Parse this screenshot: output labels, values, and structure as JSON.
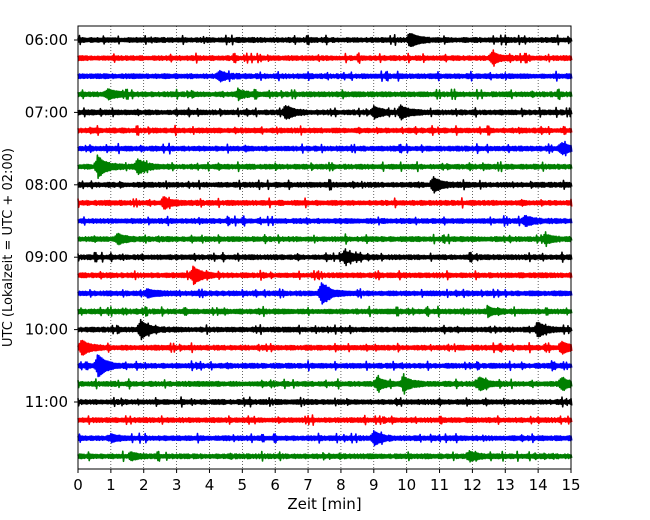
{
  "chart_data": {
    "type": "line",
    "subtype": "helicorder",
    "xlabel": "Zeit  [min]",
    "ylabel": "UTC (Lokalzeit = UTC + 02:00)",
    "xlim": [
      0,
      15
    ],
    "x_ticks": [
      "0",
      "1",
      "2",
      "3",
      "4",
      "5",
      "6",
      "7",
      "8",
      "9",
      "10",
      "11",
      "12",
      "13",
      "14",
      "15"
    ],
    "y_tick_labels": [
      "06:00",
      "07:00",
      "08:00",
      "09:00",
      "10:00",
      "11:00"
    ],
    "grid": "vertical dotted",
    "colors": [
      "#000000",
      "#ff0000",
      "#0000ff",
      "#008000"
    ],
    "traces": [
      {
        "start": "06:00",
        "color": "#000000",
        "events": [
          {
            "t": 10.1,
            "amp": 0.6
          }
        ]
      },
      {
        "start": "06:15",
        "color": "#ff0000",
        "events": [
          {
            "t": 12.6,
            "amp": 0.5
          }
        ]
      },
      {
        "start": "06:30",
        "color": "#0000ff",
        "events": [
          {
            "t": 4.3,
            "amp": 0.4
          }
        ]
      },
      {
        "start": "06:45",
        "color": "#008000",
        "events": [
          {
            "t": 0.9,
            "amp": 0.4
          },
          {
            "t": 4.9,
            "amp": 0.3
          }
        ]
      },
      {
        "start": "07:00",
        "color": "#000000",
        "events": [
          {
            "t": 6.3,
            "amp": 0.6
          },
          {
            "t": 9.0,
            "amp": 0.5
          },
          {
            "t": 9.8,
            "amp": 0.6
          }
        ]
      },
      {
        "start": "07:15",
        "color": "#ff0000",
        "events": []
      },
      {
        "start": "07:30",
        "color": "#0000ff",
        "events": [
          {
            "t": 14.7,
            "amp": 0.5
          }
        ]
      },
      {
        "start": "07:45",
        "color": "#008000",
        "events": [
          {
            "t": 0.6,
            "amp": 1.0
          },
          {
            "t": 1.8,
            "amp": 0.7
          }
        ]
      },
      {
        "start": "08:00",
        "color": "#000000",
        "events": [
          {
            "t": 10.8,
            "amp": 0.7
          }
        ]
      },
      {
        "start": "08:15",
        "color": "#ff0000",
        "events": [
          {
            "t": 2.6,
            "amp": 0.5
          }
        ]
      },
      {
        "start": "08:30",
        "color": "#0000ff",
        "events": [
          {
            "t": 13.6,
            "amp": 0.4
          }
        ]
      },
      {
        "start": "08:45",
        "color": "#008000",
        "events": [
          {
            "t": 1.2,
            "amp": 0.4
          },
          {
            "t": 14.2,
            "amp": 0.4
          }
        ]
      },
      {
        "start": "09:00",
        "color": "#000000",
        "events": [
          {
            "t": 8.1,
            "amp": 0.6
          }
        ]
      },
      {
        "start": "09:15",
        "color": "#ff0000",
        "events": [
          {
            "t": 3.5,
            "amp": 0.8
          }
        ]
      },
      {
        "start": "09:30",
        "color": "#0000ff",
        "events": [
          {
            "t": 7.4,
            "amp": 1.0
          },
          {
            "t": 2.1,
            "amp": 0.3
          }
        ]
      },
      {
        "start": "09:45",
        "color": "#008000",
        "events": [
          {
            "t": 12.5,
            "amp": 0.3
          }
        ]
      },
      {
        "start": "10:00",
        "color": "#000000",
        "events": [
          {
            "t": 1.9,
            "amp": 0.9
          },
          {
            "t": 14.0,
            "amp": 0.6
          }
        ]
      },
      {
        "start": "10:15",
        "color": "#ff0000",
        "events": [
          {
            "t": 0.1,
            "amp": 0.7
          },
          {
            "t": 14.7,
            "amp": 0.5
          }
        ]
      },
      {
        "start": "10:30",
        "color": "#0000ff",
        "events": [
          {
            "t": 0.6,
            "amp": 1.1
          }
        ]
      },
      {
        "start": "10:45",
        "color": "#008000",
        "events": [
          {
            "t": 9.1,
            "amp": 0.6
          },
          {
            "t": 9.9,
            "amp": 0.6
          },
          {
            "t": 12.2,
            "amp": 0.6
          },
          {
            "t": 14.7,
            "amp": 0.5
          }
        ]
      },
      {
        "start": "11:00",
        "color": "#000000",
        "events": []
      },
      {
        "start": "11:15",
        "color": "#ff0000",
        "events": []
      },
      {
        "start": "11:30",
        "color": "#0000ff",
        "events": [
          {
            "t": 9.0,
            "amp": 0.6
          },
          {
            "t": 1.0,
            "amp": 0.3
          }
        ]
      },
      {
        "start": "11:45",
        "color": "#008000",
        "events": [
          {
            "t": 11.9,
            "amp": 0.4
          },
          {
            "t": 1.6,
            "amp": 0.3
          }
        ]
      }
    ]
  }
}
